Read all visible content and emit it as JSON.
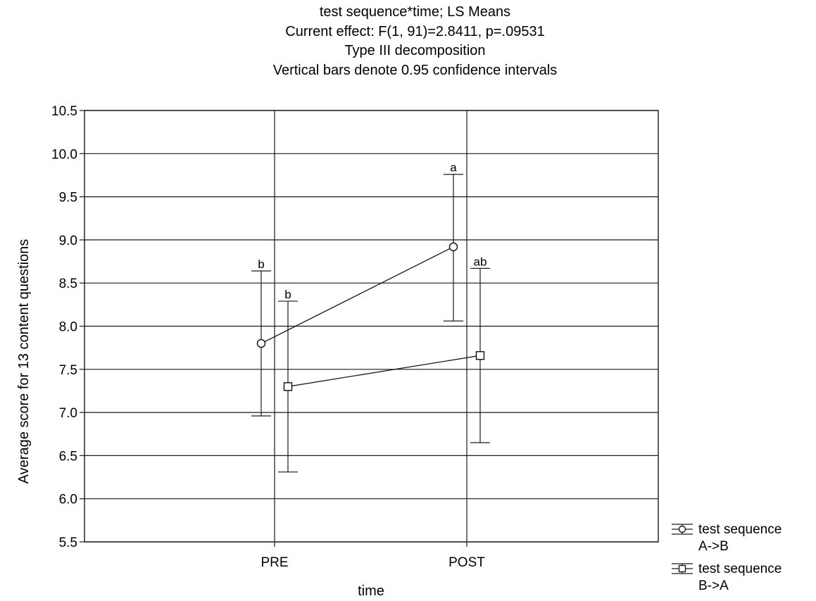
{
  "chart_data": {
    "type": "line",
    "title": "test sequence*time; LS Means",
    "subtitle": [
      "Current effect: F(1, 91)=2.8411, p=.09531",
      "Type III decomposition",
      "Vertical bars denote 0.95 confidence intervals"
    ],
    "xlabel": "time",
    "ylabel": "Average score for 13 content questions",
    "categories": [
      "PRE",
      "POST"
    ],
    "ylim": [
      5.5,
      10.5
    ],
    "yticks": [
      "5.5",
      "6.0",
      "6.5",
      "7.0",
      "7.5",
      "8.0",
      "8.5",
      "9.0",
      "9.5",
      "10.0",
      "10.5"
    ],
    "grid": true,
    "legend_position": "right-bottom",
    "series": [
      {
        "name": "test sequence A->B",
        "legend_label_lines": [
          "test sequence",
          "A->B"
        ],
        "marker": "circle",
        "values": [
          7.8,
          8.92
        ],
        "ci_lower": [
          6.96,
          8.06
        ],
        "ci_upper": [
          8.64,
          9.76
        ],
        "letters": [
          "b",
          "a"
        ]
      },
      {
        "name": "test sequence B->A",
        "legend_label_lines": [
          "test sequence",
          "B->A"
        ],
        "marker": "square",
        "values": [
          7.3,
          7.66
        ],
        "ci_lower": [
          6.31,
          6.65
        ],
        "ci_upper": [
          8.29,
          8.67
        ],
        "letters": [
          "b",
          "ab"
        ]
      }
    ]
  }
}
